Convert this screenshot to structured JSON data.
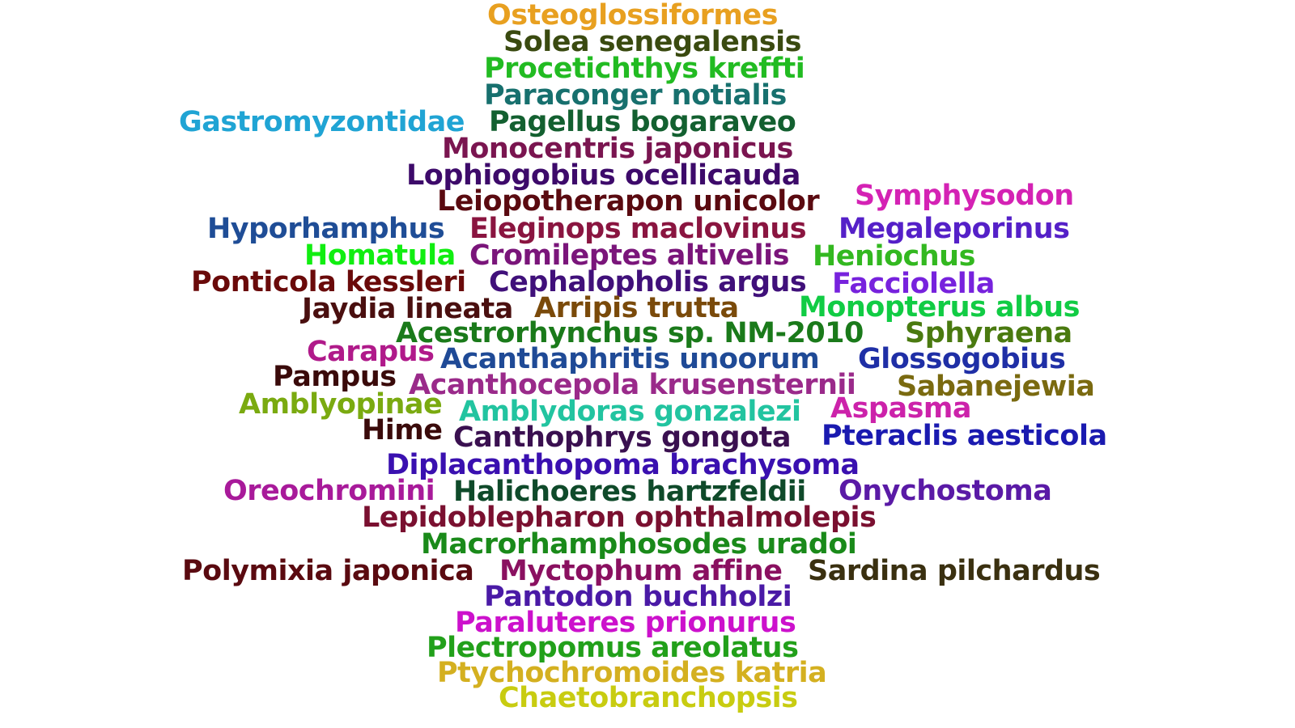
{
  "words": [
    {
      "text": "Osteoglossiformes",
      "color": "#e8a020"
    },
    {
      "text": "Solea senegalensis",
      "color": "#3a4a10"
    },
    {
      "text": "Procetichthys kreffti",
      "color": "#22bb22"
    },
    {
      "text": "Paraconger notialis",
      "color": "#17706e"
    },
    {
      "text": "Gastromyzontidae",
      "color": "#20a4d4"
    },
    {
      "text": "Pagellus bogaraveo",
      "color": "#136030"
    },
    {
      "text": "Monocentris japonicus",
      "color": "#7a1550"
    },
    {
      "text": "Lophiogobius ocellicauda",
      "color": "#3d0a6a"
    },
    {
      "text": "Leiopotherapon unicolor",
      "color": "#5a0a10"
    },
    {
      "text": "Symphysodon",
      "color": "#d422b4"
    },
    {
      "text": "Hyporhamphus",
      "color": "#1f4d96"
    },
    {
      "text": "Eleginops maclovinus",
      "color": "#8a1540"
    },
    {
      "text": "Megaleporinus",
      "color": "#5520c8"
    },
    {
      "text": "Homatula",
      "color": "#11ee11"
    },
    {
      "text": "Cromileptes altivelis",
      "color": "#7a157a"
    },
    {
      "text": "Heniochus",
      "color": "#33b820"
    },
    {
      "text": "Ponticola kessleri",
      "color": "#6a0a0a"
    },
    {
      "text": "Cephalopholis argus",
      "color": "#40107a"
    },
    {
      "text": "Facciolella",
      "color": "#7722dd"
    },
    {
      "text": "Jaydia lineata",
      "color": "#4a0f0f"
    },
    {
      "text": "Arripis trutta",
      "color": "#7a4a0a"
    },
    {
      "text": "Monopterus albus",
      "color": "#11cc44"
    },
    {
      "text": "Acestrorhynchus sp. NM-2010",
      "color": "#1a7a1a"
    },
    {
      "text": "Sphyraena",
      "color": "#4a7a10"
    },
    {
      "text": "Carapus",
      "color": "#b01a8a"
    },
    {
      "text": "Acanthaphritis unoorum",
      "color": "#1f4a96"
    },
    {
      "text": "Glossogobius",
      "color": "#1f2fa6"
    },
    {
      "text": "Pampus",
      "color": "#3a0a0a"
    },
    {
      "text": "Acanthocepola krusensternii",
      "color": "#9a2a8a"
    },
    {
      "text": "Sabanejewia",
      "color": "#7a6a10"
    },
    {
      "text": "Amblyopinae",
      "color": "#7aaa10"
    },
    {
      "text": "Amblydoras gonzalezi",
      "color": "#22c4a0"
    },
    {
      "text": "Aspasma",
      "color": "#cc22aa"
    },
    {
      "text": "Hime",
      "color": "#3a0a0a"
    },
    {
      "text": "Canthophrys gongota",
      "color": "#3a1050"
    },
    {
      "text": "Pteraclis aesticola",
      "color": "#1a1ab0"
    },
    {
      "text": "Diplacanthopoma brachysoma",
      "color": "#3a10b0"
    },
    {
      "text": "Oreochromini",
      "color": "#a81a9a"
    },
    {
      "text": "Halichoeres hartzfeldii",
      "color": "#0f4a2a"
    },
    {
      "text": "Onychostoma",
      "color": "#5a1aa6"
    },
    {
      "text": "Lepidoblepharon ophthalmolepis",
      "color": "#7a1030"
    },
    {
      "text": "Macrorhamphosodes uradoi",
      "color": "#1a8a1a"
    },
    {
      "text": "Polymixia japonica",
      "color": "#5a0a10"
    },
    {
      "text": "Myctophum affine",
      "color": "#8a1060"
    },
    {
      "text": "Sardina pilchardus",
      "color": "#3a3010"
    },
    {
      "text": "Pantodon buchholzi",
      "color": "#4a1aa6"
    },
    {
      "text": "Paraluteres prionurus",
      "color": "#cc11cc"
    },
    {
      "text": "Plectropomus areolatus",
      "color": "#22a01a"
    },
    {
      "text": "Ptychochromoides katria",
      "color": "#d4b020"
    },
    {
      "text": "Chaetobranchopsis",
      "color": "#c8cc11"
    }
  ]
}
